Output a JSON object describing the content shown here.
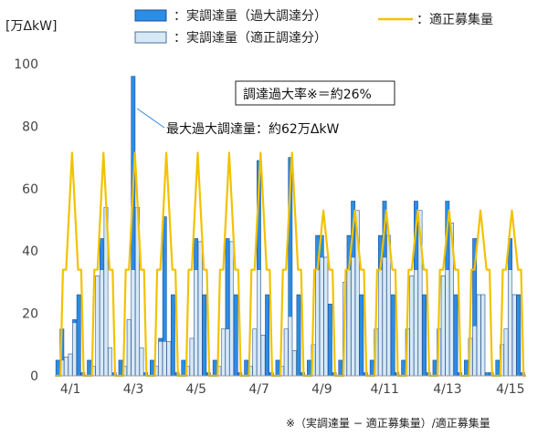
{
  "chart_data": {
    "type": "bar",
    "unit_label": "[万ΔkW]",
    "ylim": [
      0,
      100
    ],
    "y_ticks": [
      0,
      20,
      40,
      60,
      80,
      100
    ],
    "x_tick_labels": [
      "4/1",
      "4/3",
      "4/5",
      "4/7",
      "4/9",
      "4/11",
      "4/13",
      "4/15"
    ],
    "days": [
      "4/1",
      "4/2",
      "4/3",
      "4/4",
      "4/5",
      "4/6",
      "4/7",
      "4/8",
      "4/9",
      "4/10",
      "4/11",
      "4/12",
      "4/13",
      "4/14",
      "4/15"
    ],
    "legend": {
      "excess": "：実調達量（過大調達分）",
      "proper": "：実調達量（適正調達分）",
      "recruit": "：適正募集量"
    },
    "series": [
      {
        "name": "：実調達量（過大調達分）",
        "values": [
          [
            5,
            15,
            6,
            7,
            18,
            26,
            1
          ],
          [
            5,
            3,
            32,
            44,
            54,
            9,
            1
          ],
          [
            5,
            3,
            18,
            96,
            54,
            9,
            1
          ],
          [
            5,
            3,
            12,
            51,
            11,
            26,
            1
          ],
          [
            5,
            3,
            12,
            44,
            43,
            26,
            1
          ],
          [
            5,
            3,
            15,
            44,
            43,
            26,
            1
          ],
          [
            5,
            3,
            15,
            69,
            13,
            26,
            1
          ],
          [
            5,
            3,
            15,
            70,
            8,
            26,
            1
          ],
          [
            5,
            10,
            45,
            45,
            38,
            23,
            1
          ],
          [
            5,
            30,
            45,
            56,
            53,
            26,
            1
          ],
          [
            5,
            15,
            45,
            56,
            45,
            26,
            1
          ],
          [
            5,
            15,
            32,
            56,
            53,
            26,
            1
          ],
          [
            5,
            15,
            32,
            56,
            49,
            26,
            1
          ],
          [
            5,
            12,
            44,
            26,
            26,
            1,
            1
          ],
          [
            5,
            10,
            15,
            44,
            26,
            26,
            1
          ]
        ]
      },
      {
        "name": "：実調達量（適正調達分）",
        "values": [
          [
            0,
            5,
            6,
            7,
            17,
            0,
            0
          ],
          [
            0,
            3,
            32,
            34,
            54,
            9,
            0
          ],
          [
            0,
            3,
            18,
            34,
            54,
            9,
            0
          ],
          [
            0,
            3,
            11,
            11,
            11,
            0,
            0
          ],
          [
            0,
            3,
            12,
            34,
            43,
            0,
            0
          ],
          [
            0,
            3,
            15,
            15,
            43,
            0,
            0
          ],
          [
            0,
            3,
            15,
            34,
            13,
            0,
            0
          ],
          [
            0,
            3,
            15,
            19,
            8,
            0,
            0
          ],
          [
            0,
            10,
            34,
            38,
            38,
            0,
            0
          ],
          [
            0,
            30,
            34,
            38,
            53,
            0,
            0
          ],
          [
            0,
            15,
            34,
            38,
            45,
            0,
            0
          ],
          [
            0,
            15,
            32,
            34,
            53,
            0,
            0
          ],
          [
            0,
            15,
            32,
            34,
            49,
            0,
            0
          ],
          [
            0,
            12,
            16,
            26,
            26,
            0,
            0
          ],
          [
            0,
            10,
            15,
            34,
            26,
            0,
            0
          ]
        ]
      }
    ],
    "recruit_line": {
      "name": "：適正募集量",
      "high_days": [
        0,
        1,
        2,
        3,
        4,
        5,
        6,
        7
      ],
      "peak_high": 71.5,
      "peak_low": 53,
      "shoulder": 34,
      "bottom": 0
    },
    "annotations": {
      "ratio_box": "調達過大率※＝約26%",
      "max_label": "最大過大調達量：約62万ΔkW",
      "footnote": "※（実調達量 − 適正募集量）/適正募集量"
    },
    "colors": {
      "excess": "#2b8de3",
      "excess_edge": "#1f4f9a",
      "proper": "#d7e9f7",
      "proper_edge": "#4b6f9e",
      "recruit": "#f2c200",
      "axis": "#bbbbbb"
    }
  }
}
